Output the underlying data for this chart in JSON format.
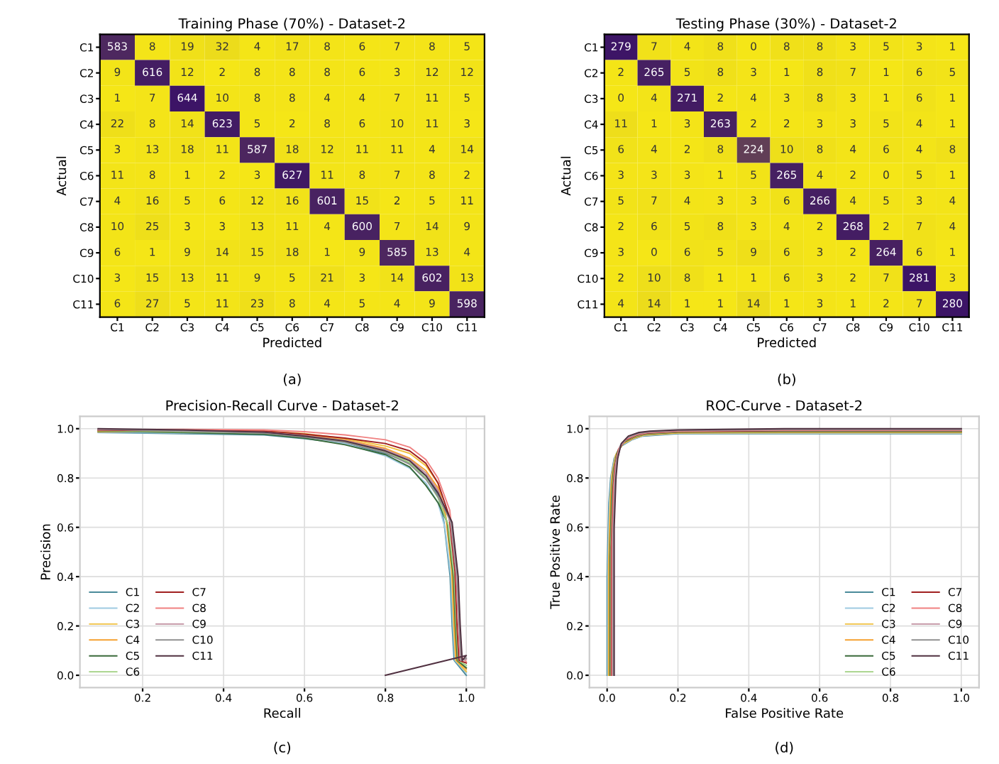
{
  "chart_data": [
    {
      "type": "heatmap",
      "title": "Training Phase (70%) - Dataset-2",
      "xlabel": "Predicted",
      "ylabel": "Actual",
      "annotations": [
        "(a)"
      ],
      "data_labels": true,
      "categories": [
        "C1",
        "C2",
        "C3",
        "C4",
        "C5",
        "C6",
        "C7",
        "C8",
        "C9",
        "C10",
        "C11"
      ],
      "y_categories": [
        "C1",
        "C2",
        "C3",
        "C4",
        "C5",
        "C6",
        "C7",
        "C8",
        "C9",
        "C10",
        "C11"
      ],
      "cells": [
        [
          583,
          8,
          19,
          32,
          4,
          17,
          8,
          6,
          7,
          8,
          5
        ],
        [
          9,
          616,
          12,
          2,
          8,
          8,
          8,
          6,
          3,
          12,
          12
        ],
        [
          1,
          7,
          644,
          10,
          8,
          8,
          4,
          4,
          7,
          11,
          5
        ],
        [
          22,
          8,
          14,
          623,
          5,
          2,
          8,
          6,
          10,
          11,
          3
        ],
        [
          3,
          13,
          18,
          11,
          587,
          18,
          12,
          11,
          11,
          4,
          14
        ],
        [
          11,
          8,
          1,
          2,
          3,
          627,
          11,
          8,
          7,
          8,
          2
        ],
        [
          4,
          16,
          5,
          6,
          12,
          16,
          601,
          15,
          2,
          5,
          11
        ],
        [
          10,
          25,
          3,
          3,
          13,
          11,
          4,
          600,
          7,
          14,
          9
        ],
        [
          6,
          1,
          9,
          14,
          15,
          18,
          1,
          9,
          585,
          13,
          4
        ],
        [
          3,
          15,
          13,
          11,
          9,
          5,
          21,
          3,
          14,
          602,
          13
        ],
        [
          6,
          27,
          5,
          11,
          23,
          8,
          4,
          5,
          4,
          9,
          598
        ]
      ]
    },
    {
      "type": "heatmap",
      "title": "Testing Phase (30%) - Dataset-2",
      "xlabel": "Predicted",
      "ylabel": "Actual",
      "annotations": [
        "(b)"
      ],
      "data_labels": true,
      "categories": [
        "C1",
        "C2",
        "C3",
        "C4",
        "C5",
        "C6",
        "C7",
        "C8",
        "C9",
        "C10",
        "C11"
      ],
      "y_categories": [
        "C1",
        "C2",
        "C3",
        "C4",
        "C5",
        "C6",
        "C7",
        "C8",
        "C9",
        "C10",
        "C11"
      ],
      "cells": [
        [
          279,
          7,
          4,
          8,
          0,
          8,
          8,
          3,
          5,
          3,
          1
        ],
        [
          2,
          265,
          5,
          8,
          3,
          1,
          8,
          7,
          1,
          6,
          5
        ],
        [
          0,
          4,
          271,
          2,
          4,
          3,
          8,
          3,
          1,
          6,
          1
        ],
        [
          11,
          1,
          3,
          263,
          2,
          2,
          3,
          3,
          5,
          4,
          1
        ],
        [
          6,
          4,
          2,
          8,
          224,
          10,
          8,
          4,
          6,
          4,
          8
        ],
        [
          3,
          3,
          3,
          1,
          5,
          265,
          4,
          2,
          0,
          5,
          1
        ],
        [
          5,
          7,
          4,
          3,
          3,
          6,
          266,
          4,
          5,
          3,
          4
        ],
        [
          2,
          6,
          5,
          8,
          3,
          4,
          2,
          268,
          2,
          7,
          4
        ],
        [
          3,
          0,
          6,
          5,
          9,
          6,
          3,
          2,
          264,
          6,
          1
        ],
        [
          2,
          10,
          8,
          1,
          1,
          6,
          3,
          2,
          7,
          281,
          3
        ],
        [
          4,
          14,
          1,
          1,
          14,
          1,
          3,
          1,
          2,
          7,
          280
        ]
      ]
    },
    {
      "type": "line",
      "title": "Precision-Recall Curve - Dataset-2",
      "xlabel": "Recall",
      "ylabel": "Precision",
      "annotations": [
        "(c)"
      ],
      "grid": true,
      "legend": "bottom left",
      "xlim": [
        0.045,
        1.045
      ],
      "ylim": [
        -0.05,
        1.05
      ],
      "xticks": [
        {
          "value": 0.2,
          "label": "0.2"
        },
        {
          "value": 0.4,
          "label": "0.4"
        },
        {
          "value": 0.6,
          "label": "0.6"
        },
        {
          "value": 0.8,
          "label": "0.8"
        },
        {
          "value": 1,
          "label": "1.0"
        }
      ],
      "yticks": [
        {
          "value": 0,
          "label": "0.0"
        },
        {
          "value": 0.2,
          "label": "0.2"
        },
        {
          "value": 0.4,
          "label": "0.4"
        },
        {
          "value": 0.6,
          "label": "0.6"
        },
        {
          "value": 0.8,
          "label": "0.8"
        },
        {
          "value": 1,
          "label": "1.0"
        }
      ],
      "series": [
        {
          "name": "C1",
          "color": "#4a8a9a",
          "x": [
            0.09,
            0.3,
            0.5,
            0.6,
            0.7,
            0.8,
            0.86,
            0.9,
            0.93,
            0.945,
            0.96,
            0.965,
            0.97,
            1.0
          ],
          "values": [
            0.985,
            0.98,
            0.975,
            0.96,
            0.94,
            0.9,
            0.86,
            0.81,
            0.73,
            0.62,
            0.4,
            0.2,
            0.06,
            0.0
          ]
        },
        {
          "name": "C2",
          "color": "#9ecae1",
          "x": [
            0.09,
            0.3,
            0.5,
            0.6,
            0.7,
            0.8,
            0.86,
            0.9,
            0.93,
            0.947,
            0.962,
            0.967,
            0.972,
            1.0
          ],
          "values": [
            0.987,
            0.982,
            0.98,
            0.965,
            0.94,
            0.89,
            0.84,
            0.78,
            0.7,
            0.6,
            0.4,
            0.2,
            0.06,
            0.01
          ]
        },
        {
          "name": "C3",
          "color": "#f0c040",
          "x": [
            0.09,
            0.3,
            0.5,
            0.6,
            0.7,
            0.8,
            0.86,
            0.9,
            0.93,
            0.949,
            0.964,
            0.969,
            0.974,
            1.0
          ],
          "values": [
            0.988,
            0.99,
            0.99,
            0.98,
            0.96,
            0.93,
            0.9,
            0.85,
            0.78,
            0.65,
            0.42,
            0.2,
            0.06,
            0.015
          ]
        },
        {
          "name": "C4",
          "color": "#f5a030",
          "x": [
            0.09,
            0.3,
            0.5,
            0.6,
            0.7,
            0.8,
            0.86,
            0.9,
            0.93,
            0.951,
            0.966,
            0.971,
            0.976,
            1.0
          ],
          "values": [
            0.99,
            0.986,
            0.988,
            0.975,
            0.955,
            0.92,
            0.88,
            0.83,
            0.76,
            0.63,
            0.41,
            0.2,
            0.06,
            0.025
          ]
        },
        {
          "name": "C5",
          "color": "#3a6a3a",
          "x": [
            0.09,
            0.3,
            0.5,
            0.6,
            0.7,
            0.8,
            0.86,
            0.9,
            0.93,
            0.953,
            0.968,
            0.973,
            0.978,
            1.0
          ],
          "values": [
            0.991,
            0.984,
            0.978,
            0.962,
            0.935,
            0.895,
            0.845,
            0.77,
            0.7,
            0.62,
            0.4,
            0.2,
            0.06,
            0.03
          ]
        },
        {
          "name": "C6",
          "color": "#a0d080",
          "x": [
            0.09,
            0.3,
            0.5,
            0.6,
            0.7,
            0.8,
            0.86,
            0.9,
            0.93,
            0.955,
            0.97,
            0.975,
            0.98,
            1.0
          ],
          "values": [
            0.993,
            0.988,
            0.983,
            0.968,
            0.948,
            0.908,
            0.862,
            0.8,
            0.72,
            0.61,
            0.4,
            0.2,
            0.06,
            0.04
          ]
        },
        {
          "name": "C7",
          "color": "#a02020",
          "x": [
            0.09,
            0.3,
            0.5,
            0.6,
            0.7,
            0.8,
            0.86,
            0.9,
            0.93,
            0.957,
            0.972,
            0.977,
            0.982,
            1.0
          ],
          "values": [
            0.994,
            0.992,
            0.99,
            0.978,
            0.962,
            0.94,
            0.91,
            0.86,
            0.78,
            0.65,
            0.42,
            0.2,
            0.06,
            0.05
          ]
        },
        {
          "name": "C8",
          "color": "#f08080",
          "x": [
            0.09,
            0.3,
            0.5,
            0.6,
            0.7,
            0.8,
            0.86,
            0.9,
            0.93,
            0.959,
            0.974,
            0.979,
            0.984,
            1.0
          ],
          "values": [
            0.996,
            0.997,
            0.995,
            0.988,
            0.975,
            0.955,
            0.925,
            0.875,
            0.8,
            0.67,
            0.45,
            0.25,
            0.08,
            0.055
          ]
        },
        {
          "name": "C9",
          "color": "#c090a0",
          "x": [
            0.09,
            0.3,
            0.5,
            0.6,
            0.7,
            0.8,
            0.86,
            0.9,
            0.93,
            0.961,
            0.976,
            0.981,
            0.986,
            1.0
          ],
          "values": [
            0.997,
            0.993,
            0.986,
            0.972,
            0.952,
            0.915,
            0.875,
            0.82,
            0.75,
            0.62,
            0.4,
            0.2,
            0.06,
            0.065
          ]
        },
        {
          "name": "C10",
          "color": "#909090",
          "x": [
            0.09,
            0.3,
            0.5,
            0.6,
            0.7,
            0.8,
            0.86,
            0.9,
            0.93,
            0.963,
            0.978,
            0.983,
            0.988,
            1.0
          ],
          "values": [
            0.999,
            0.99,
            0.982,
            0.966,
            0.945,
            0.903,
            0.856,
            0.795,
            0.725,
            0.62,
            0.4,
            0.2,
            0.06,
            0.07
          ]
        },
        {
          "name": "C11",
          "color": "#503040",
          "x": [
            0.09,
            0.3,
            0.5,
            0.6,
            0.7,
            0.8,
            0.86,
            0.9,
            0.93,
            0.965,
            0.98,
            0.985,
            0.99,
            1.0,
            0.8
          ],
          "values": [
            1.0,
            0.995,
            0.986,
            0.97,
            0.95,
            0.91,
            0.87,
            0.81,
            0.74,
            0.62,
            0.4,
            0.2,
            0.06,
            0.08,
            0.0
          ]
        }
      ]
    },
    {
      "type": "line",
      "title": "ROC-Curve - Dataset-2",
      "xlabel": "False Positive Rate",
      "ylabel": "True Positive Rate",
      "annotations": [
        "(d)"
      ],
      "grid": true,
      "legend": "bottom right",
      "xlim": [
        -0.05,
        1.05
      ],
      "ylim": [
        -0.05,
        1.05
      ],
      "xticks": [
        {
          "value": 0,
          "label": "0.0"
        },
        {
          "value": 0.2,
          "label": "0.2"
        },
        {
          "value": 0.4,
          "label": "0.4"
        },
        {
          "value": 0.6,
          "label": "0.6"
        },
        {
          "value": 0.8,
          "label": "0.8"
        },
        {
          "value": 1,
          "label": "1.0"
        }
      ],
      "yticks": [
        {
          "value": 0,
          "label": "0.0"
        },
        {
          "value": 0.2,
          "label": "0.2"
        },
        {
          "value": 0.4,
          "label": "0.4"
        },
        {
          "value": 0.6,
          "label": "0.6"
        },
        {
          "value": 0.8,
          "label": "0.8"
        },
        {
          "value": 1,
          "label": "1.0"
        }
      ],
      "series": [
        {
          "name": "C1",
          "color": "#4a8a9a",
          "x": [
            0,
            0,
            0.005,
            0.01,
            0.02,
            0.04,
            0.07,
            0.1,
            0.2,
            0.5,
            1.0
          ],
          "values": [
            0,
            0.4,
            0.7,
            0.8,
            0.88,
            0.93,
            0.955,
            0.97,
            0.98,
            0.98,
            0.98
          ]
        },
        {
          "name": "C2",
          "color": "#9ecae1",
          "x": [
            0.002,
            0.002,
            0.007,
            0.012,
            0.022,
            0.042,
            0.072,
            0.102,
            0.2,
            0.5,
            1.0
          ],
          "values": [
            0,
            0.42,
            0.71,
            0.808,
            0.886,
            0.934,
            0.958,
            0.972,
            0.982,
            0.982,
            0.982
          ]
        },
        {
          "name": "C3",
          "color": "#f0c040",
          "x": [
            0.004,
            0.004,
            0.009,
            0.014,
            0.024,
            0.044,
            0.074,
            0.104,
            0.2,
            0.5,
            1.0
          ],
          "values": [
            0,
            0.44,
            0.72,
            0.816,
            0.892,
            0.938,
            0.961,
            0.974,
            0.983,
            0.984,
            0.984
          ]
        },
        {
          "name": "C4",
          "color": "#f5a030",
          "x": [
            0.006,
            0.006,
            0.011,
            0.016,
            0.026,
            0.046,
            0.076,
            0.106,
            0.2,
            0.5,
            1.0
          ],
          "values": [
            0,
            0.46,
            0.73,
            0.824,
            0.898,
            0.942,
            0.964,
            0.976,
            0.985,
            0.986,
            0.986
          ]
        },
        {
          "name": "C5",
          "color": "#3a6a3a",
          "x": [
            0.008,
            0.008,
            0.013,
            0.018,
            0.028,
            0.048,
            0.078,
            0.108,
            0.2,
            0.5,
            1.0
          ],
          "values": [
            0,
            0.48,
            0.74,
            0.832,
            0.904,
            0.946,
            0.967,
            0.978,
            0.986,
            0.988,
            0.988
          ]
        },
        {
          "name": "C6",
          "color": "#a0d080",
          "x": [
            0.01,
            0.01,
            0.015,
            0.02,
            0.03,
            0.05,
            0.08,
            0.11,
            0.2,
            0.5,
            1.0
          ],
          "values": [
            0,
            0.5,
            0.75,
            0.84,
            0.91,
            0.95,
            0.97,
            0.98,
            0.988,
            0.99,
            0.99
          ]
        },
        {
          "name": "C7",
          "color": "#a02020",
          "x": [
            0.012,
            0.012,
            0.017,
            0.022,
            0.032,
            0.052,
            0.082,
            0.112,
            0.2,
            0.5,
            1.0
          ],
          "values": [
            0,
            0.52,
            0.76,
            0.848,
            0.916,
            0.954,
            0.973,
            0.982,
            0.989,
            0.992,
            0.992
          ]
        },
        {
          "name": "C8",
          "color": "#f08080",
          "x": [
            0.014,
            0.014,
            0.019,
            0.024,
            0.034,
            0.054,
            0.084,
            0.114,
            0.2,
            0.5,
            1.0
          ],
          "values": [
            0,
            0.54,
            0.77,
            0.856,
            0.922,
            0.958,
            0.976,
            0.984,
            0.991,
            0.994,
            0.994
          ]
        },
        {
          "name": "C9",
          "color": "#c090a0",
          "x": [
            0.016,
            0.016,
            0.021,
            0.026,
            0.036,
            0.056,
            0.086,
            0.116,
            0.2,
            0.5,
            1.0
          ],
          "values": [
            0,
            0.56,
            0.78,
            0.864,
            0.928,
            0.962,
            0.979,
            0.986,
            0.992,
            0.996,
            0.996
          ]
        },
        {
          "name": "C10",
          "color": "#909090",
          "x": [
            0.018,
            0.018,
            0.023,
            0.028,
            0.038,
            0.058,
            0.088,
            0.118,
            0.2,
            0.5,
            1.0
          ],
          "values": [
            0,
            0.58,
            0.79,
            0.872,
            0.934,
            0.966,
            0.982,
            0.988,
            0.994,
            0.998,
            0.998
          ]
        },
        {
          "name": "C11",
          "color": "#503040",
          "x": [
            0.02,
            0.02,
            0.025,
            0.03,
            0.04,
            0.06,
            0.09,
            0.12,
            0.2,
            0.5,
            1.0
          ],
          "values": [
            0,
            0.6,
            0.8,
            0.88,
            0.94,
            0.97,
            0.985,
            0.99,
            0.995,
            1.0,
            1.0
          ]
        }
      ]
    }
  ]
}
